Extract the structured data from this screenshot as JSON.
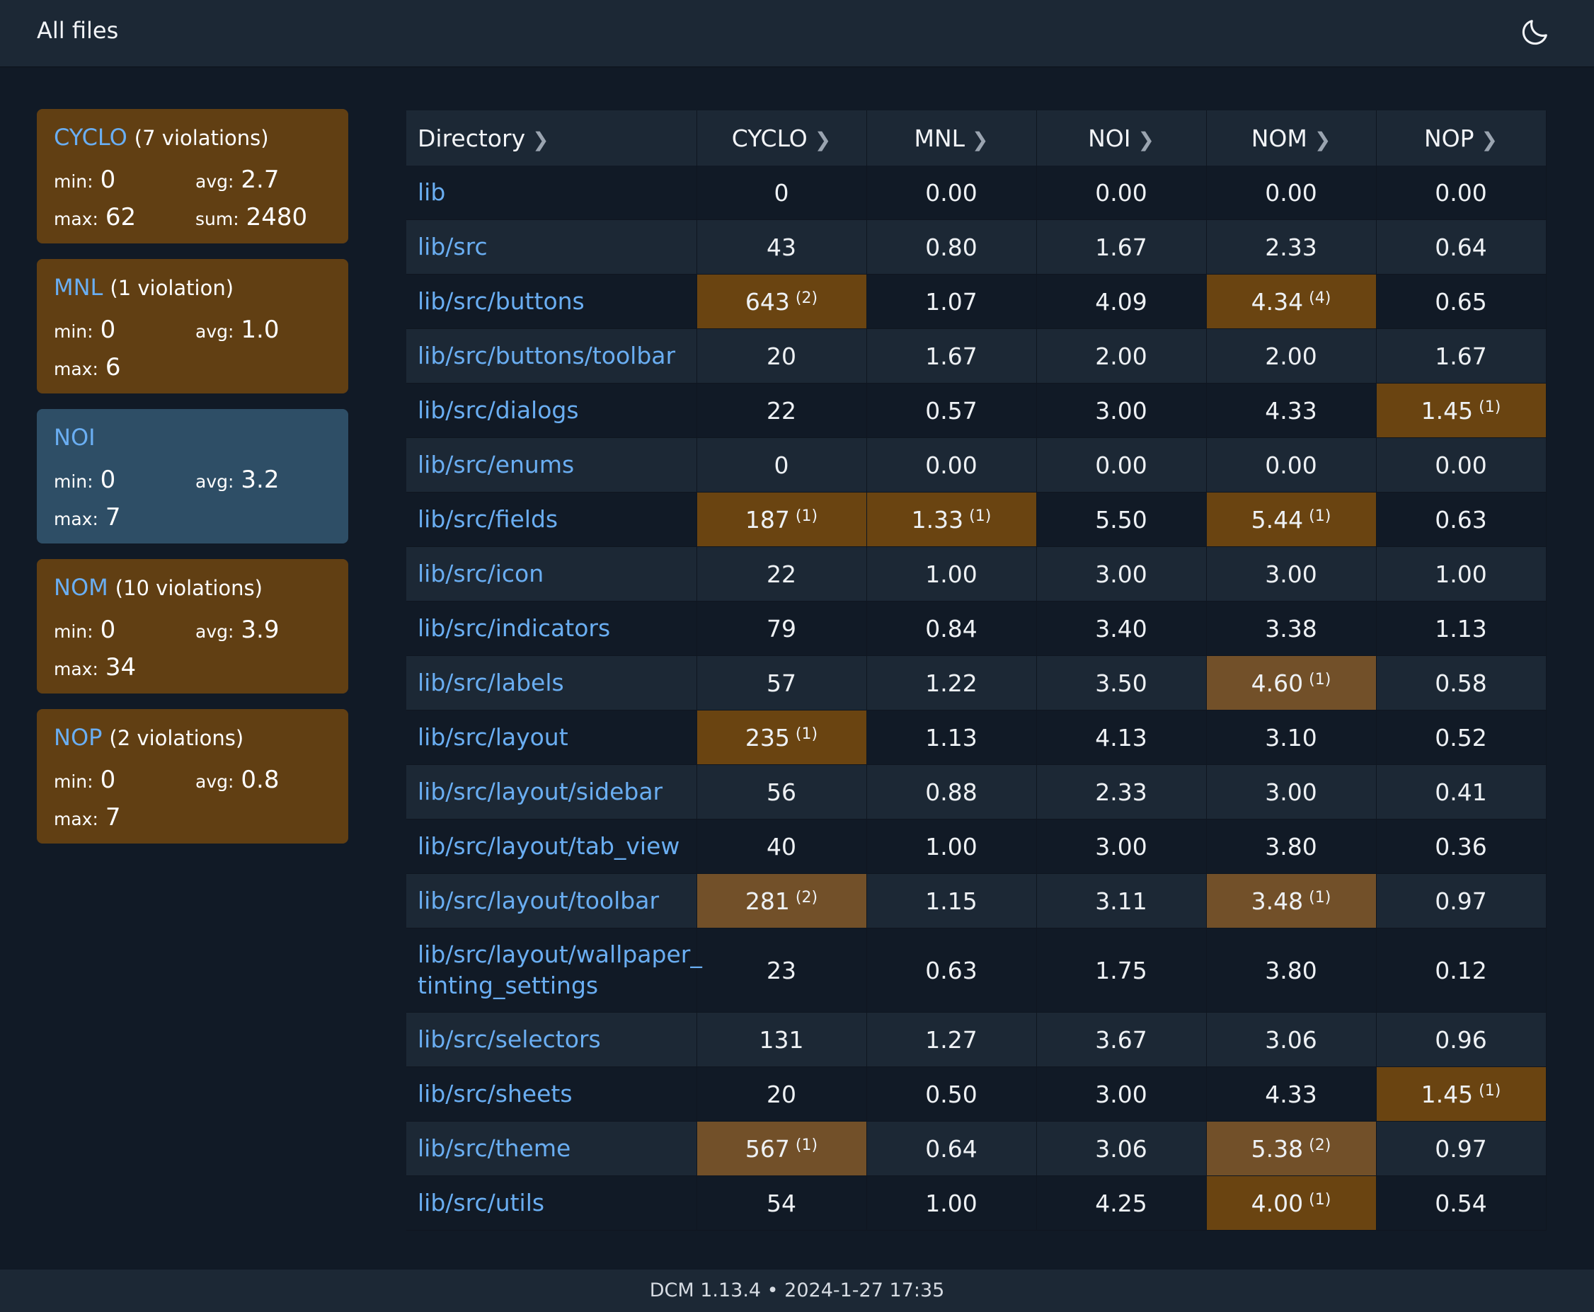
{
  "header": {
    "title": "All files",
    "theme_icon": "moon-icon"
  },
  "metrics_summary": [
    {
      "name": "CYCLO",
      "violations": "(7 violations)",
      "status": "violation",
      "min_label": "min:",
      "min": "0",
      "avg_label": "avg:",
      "avg": "2.7",
      "max_label": "max:",
      "max": "62",
      "sum_label": "sum:",
      "sum": "2480"
    },
    {
      "name": "MNL",
      "violations": "(1 violation)",
      "status": "violation",
      "min_label": "min:",
      "min": "0",
      "avg_label": "avg:",
      "avg": "1.0",
      "max_label": "max:",
      "max": "6"
    },
    {
      "name": "NOI",
      "violations": "",
      "status": "ok",
      "min_label": "min:",
      "min": "0",
      "avg_label": "avg:",
      "avg": "3.2",
      "max_label": "max:",
      "max": "7"
    },
    {
      "name": "NOM",
      "violations": "(10 violations)",
      "status": "violation",
      "min_label": "min:",
      "min": "0",
      "avg_label": "avg:",
      "avg": "3.9",
      "max_label": "max:",
      "max": "34"
    },
    {
      "name": "NOP",
      "violations": "(2 violations)",
      "status": "violation",
      "min_label": "min:",
      "min": "0",
      "avg_label": "avg:",
      "avg": "0.8",
      "max_label": "max:",
      "max": "7"
    }
  ],
  "table": {
    "columns": [
      "Directory",
      "CYCLO",
      "MNL",
      "NOI",
      "NOM",
      "NOP"
    ],
    "sort_icon": "chevron-right-icon",
    "rows": [
      {
        "dir": "lib",
        "cells": [
          {
            "v": "0"
          },
          {
            "v": "0.00"
          },
          {
            "v": "0.00"
          },
          {
            "v": "0.00"
          },
          {
            "v": "0.00"
          }
        ]
      },
      {
        "dir": "lib/src",
        "cells": [
          {
            "v": "43"
          },
          {
            "v": "0.80"
          },
          {
            "v": "1.67"
          },
          {
            "v": "2.33"
          },
          {
            "v": "0.64"
          }
        ]
      },
      {
        "dir": "lib/src/buttons",
        "cells": [
          {
            "v": "643",
            "sup": "(2)"
          },
          {
            "v": "1.07"
          },
          {
            "v": "4.09"
          },
          {
            "v": "4.34",
            "sup": "(4)"
          },
          {
            "v": "0.65"
          }
        ]
      },
      {
        "dir": "lib/src/buttons/toolbar",
        "cells": [
          {
            "v": "20"
          },
          {
            "v": "1.67"
          },
          {
            "v": "2.00"
          },
          {
            "v": "2.00"
          },
          {
            "v": "1.67"
          }
        ]
      },
      {
        "dir": "lib/src/dialogs",
        "cells": [
          {
            "v": "22"
          },
          {
            "v": "0.57"
          },
          {
            "v": "3.00"
          },
          {
            "v": "4.33"
          },
          {
            "v": "1.45",
            "sup": "(1)"
          }
        ]
      },
      {
        "dir": "lib/src/enums",
        "cells": [
          {
            "v": "0"
          },
          {
            "v": "0.00"
          },
          {
            "v": "0.00"
          },
          {
            "v": "0.00"
          },
          {
            "v": "0.00"
          }
        ]
      },
      {
        "dir": "lib/src/fields",
        "cells": [
          {
            "v": "187",
            "sup": "(1)"
          },
          {
            "v": "1.33",
            "sup": "(1)"
          },
          {
            "v": "5.50"
          },
          {
            "v": "5.44",
            "sup": "(1)"
          },
          {
            "v": "0.63"
          }
        ]
      },
      {
        "dir": "lib/src/icon",
        "cells": [
          {
            "v": "22"
          },
          {
            "v": "1.00"
          },
          {
            "v": "3.00"
          },
          {
            "v": "3.00"
          },
          {
            "v": "1.00"
          }
        ]
      },
      {
        "dir": "lib/src/indicators",
        "cells": [
          {
            "v": "79"
          },
          {
            "v": "0.84"
          },
          {
            "v": "3.40"
          },
          {
            "v": "3.38"
          },
          {
            "v": "1.13"
          }
        ]
      },
      {
        "dir": "lib/src/labels",
        "cells": [
          {
            "v": "57"
          },
          {
            "v": "1.22"
          },
          {
            "v": "3.50"
          },
          {
            "v": "4.60",
            "sup": "(1)"
          },
          {
            "v": "0.58"
          }
        ]
      },
      {
        "dir": "lib/src/layout",
        "cells": [
          {
            "v": "235",
            "sup": "(1)"
          },
          {
            "v": "1.13"
          },
          {
            "v": "4.13"
          },
          {
            "v": "3.10"
          },
          {
            "v": "0.52"
          }
        ]
      },
      {
        "dir": "lib/src/layout/sidebar",
        "cells": [
          {
            "v": "56"
          },
          {
            "v": "0.88"
          },
          {
            "v": "2.33"
          },
          {
            "v": "3.00"
          },
          {
            "v": "0.41"
          }
        ]
      },
      {
        "dir": "lib/src/layout/tab_view",
        "cells": [
          {
            "v": "40"
          },
          {
            "v": "1.00"
          },
          {
            "v": "3.00"
          },
          {
            "v": "3.80"
          },
          {
            "v": "0.36"
          }
        ]
      },
      {
        "dir": "lib/src/layout/toolbar",
        "cells": [
          {
            "v": "281",
            "sup": "(2)"
          },
          {
            "v": "1.15"
          },
          {
            "v": "3.11"
          },
          {
            "v": "3.48",
            "sup": "(1)"
          },
          {
            "v": "0.97"
          }
        ]
      },
      {
        "dir": "lib/src/layout/wallpaper_tinting_settings",
        "cells": [
          {
            "v": "23"
          },
          {
            "v": "0.63"
          },
          {
            "v": "1.75"
          },
          {
            "v": "3.80"
          },
          {
            "v": "0.12"
          }
        ]
      },
      {
        "dir": "lib/src/selectors",
        "cells": [
          {
            "v": "131"
          },
          {
            "v": "1.27"
          },
          {
            "v": "3.67"
          },
          {
            "v": "3.06"
          },
          {
            "v": "0.96"
          }
        ]
      },
      {
        "dir": "lib/src/sheets",
        "cells": [
          {
            "v": "20"
          },
          {
            "v": "0.50"
          },
          {
            "v": "3.00"
          },
          {
            "v": "4.33"
          },
          {
            "v": "1.45",
            "sup": "(1)"
          }
        ]
      },
      {
        "dir": "lib/src/theme",
        "cells": [
          {
            "v": "567",
            "sup": "(1)"
          },
          {
            "v": "0.64"
          },
          {
            "v": "3.06"
          },
          {
            "v": "5.38",
            "sup": "(2)"
          },
          {
            "v": "0.97"
          }
        ]
      },
      {
        "dir": "lib/src/utils",
        "cells": [
          {
            "v": "54"
          },
          {
            "v": "1.00"
          },
          {
            "v": "4.25"
          },
          {
            "v": "4.00",
            "sup": "(1)"
          },
          {
            "v": "0.54"
          }
        ]
      }
    ]
  },
  "footer": {
    "text": "DCM 1.13.4 • 2024-1-27 17:35"
  },
  "colors": {
    "background": "#111a26",
    "panel": "#1c2835",
    "violation": "#6a4411",
    "ok_card": "#2e4e66",
    "link": "#6aaef2"
  }
}
